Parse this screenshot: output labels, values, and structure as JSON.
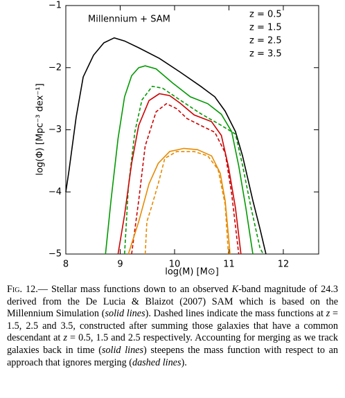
{
  "chart_data": {
    "type": "line",
    "annotation": "Millennium + SAM",
    "xlabel": "log(M) [M⊙]",
    "ylabel": "log(Φ) [Mpc⁻³ dex⁻¹]",
    "xlim": [
      8,
      12.65
    ],
    "ylim": [
      -5,
      -1
    ],
    "xticks": [
      8,
      9,
      10,
      11,
      12
    ],
    "yticks": [
      {
        "value": -5,
        "label": "−5"
      },
      {
        "value": -4,
        "label": "−4"
      },
      {
        "value": -3,
        "label": "−3"
      },
      {
        "value": -2,
        "label": "−2"
      },
      {
        "value": -1,
        "label": "−1"
      }
    ],
    "legend": "upper right",
    "series": [
      {
        "name": "z = 0.5",
        "color": "#000000",
        "style": "solid",
        "x": [
          8.0,
          8.06,
          8.19,
          8.32,
          8.51,
          8.7,
          8.89,
          9.08,
          9.34,
          9.72,
          10.1,
          10.48,
          10.74,
          10.93,
          11.12,
          11.25,
          11.44,
          11.57,
          11.68
        ],
        "values": [
          -4.0,
          -3.65,
          -2.8,
          -2.15,
          -1.8,
          -1.6,
          -1.52,
          -1.57,
          -1.68,
          -1.85,
          -2.07,
          -2.3,
          -2.47,
          -2.7,
          -3.03,
          -3.42,
          -4.14,
          -4.59,
          -5.0
        ]
      },
      {
        "name": "z = 1.5",
        "color": "#009900",
        "style": "solid",
        "x": [
          8.73,
          8.83,
          8.96,
          9.08,
          9.21,
          9.34,
          9.46,
          9.66,
          9.97,
          10.29,
          10.61,
          10.86,
          11.05,
          11.18,
          11.31,
          11.44
        ],
        "values": [
          -5.0,
          -4.14,
          -3.14,
          -2.47,
          -2.13,
          -2.0,
          -1.97,
          -2.02,
          -2.25,
          -2.47,
          -2.58,
          -2.75,
          -3.03,
          -3.58,
          -4.25,
          -5.0
        ]
      },
      {
        "color": "#009900",
        "style": "dashed",
        "x": [
          9.08,
          9.15,
          9.27,
          9.4,
          9.59,
          9.78,
          10.1,
          10.48,
          10.86,
          11.12,
          11.25,
          11.4,
          11.57,
          11.63
        ],
        "values": [
          -5.0,
          -3.92,
          -3.03,
          -2.52,
          -2.3,
          -2.33,
          -2.52,
          -2.74,
          -2.93,
          -3.07,
          -3.57,
          -4.23,
          -4.9,
          -5.0
        ]
      },
      {
        "name": "z = 2.5",
        "color": "#cc0000",
        "style": "solid",
        "x": [
          8.96,
          9.08,
          9.21,
          9.34,
          9.53,
          9.72,
          9.91,
          10.1,
          10.36,
          10.68,
          10.86,
          10.99,
          11.12,
          11.22
        ],
        "values": [
          -5.0,
          -4.37,
          -3.54,
          -2.93,
          -2.53,
          -2.42,
          -2.45,
          -2.57,
          -2.76,
          -2.87,
          -3.09,
          -3.59,
          -4.26,
          -5.0
        ]
      },
      {
        "color": "#cc0000",
        "style": "dashed",
        "x": [
          9.21,
          9.34,
          9.46,
          9.66,
          9.85,
          10.04,
          10.23,
          10.48,
          10.74,
          10.93,
          11.05,
          11.18
        ],
        "values": [
          -5.0,
          -4.14,
          -3.26,
          -2.71,
          -2.58,
          -2.66,
          -2.82,
          -2.93,
          -3.04,
          -3.37,
          -4.03,
          -5.0
        ]
      },
      {
        "name": "z = 3.5",
        "color": "#e68a00",
        "style": "solid",
        "x": [
          9.15,
          9.34,
          9.53,
          9.7,
          9.91,
          10.17,
          10.42,
          10.68,
          10.84,
          10.93,
          10.99,
          11.02
        ],
        "values": [
          -5.0,
          -4.48,
          -3.87,
          -3.54,
          -3.35,
          -3.3,
          -3.32,
          -3.42,
          -3.7,
          -4.14,
          -4.7,
          -5.0
        ]
      },
      {
        "color": "#e68a00",
        "style": "dashed",
        "x": [
          9.46,
          9.49,
          9.57,
          9.7,
          9.82,
          10.04,
          10.36,
          10.61,
          10.8,
          10.93,
          10.99
        ],
        "values": [
          -5.0,
          -4.48,
          -4.26,
          -3.87,
          -3.46,
          -3.35,
          -3.35,
          -3.42,
          -3.64,
          -4.2,
          -5.0
        ]
      }
    ]
  },
  "caption": {
    "label": "Fig. 12.—",
    "parts": [
      " Stellar mass functions down to an observed ",
      {
        "text": "K",
        "italic": true
      },
      "-band magnitude of 24.3 derived from the De Lucia & Blaizot (2007) SAM which is based on the Millennium Simulation (",
      {
        "text": "solid lines",
        "italic": true
      },
      "). Dashed lines indicate the mass functions at ",
      {
        "text": "z",
        "italic": true
      },
      " = 1.5, 2.5 and 3.5, constructed after summing those galaxies that have a common descendant at ",
      {
        "text": "z",
        "italic": true
      },
      " = 0.5, 1.5 and 2.5 respectively. Accounting for merging as we track galaxies back in time (",
      {
        "text": "solid lines",
        "italic": true
      },
      ") steepens the mass function with respect to an approach that ignores merging (",
      {
        "text": "dashed lines",
        "italic": true
      },
      ")."
    ]
  }
}
